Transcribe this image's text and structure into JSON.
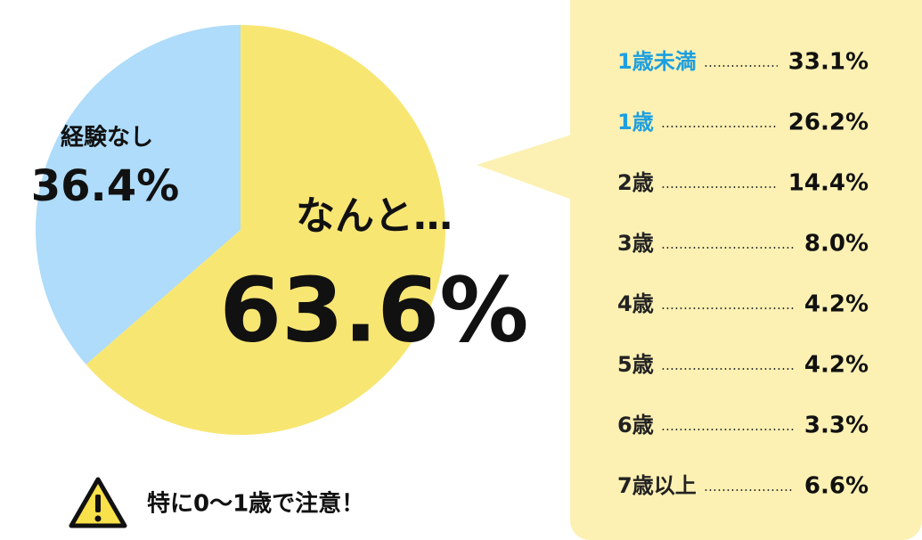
{
  "chart_data": [
    {
      "type": "pie",
      "categories": [
        null,
        "経験なし"
      ],
      "values": [
        63.6,
        36.4
      ],
      "value_labels": [
        "63.6%",
        "36.4%"
      ],
      "colors": [
        "#f8e673",
        "#aedcfa"
      ],
      "annotation": "なんと…",
      "note": "特に0〜1歳で注意！"
    },
    {
      "type": "list",
      "categories": [
        "1歳未満",
        "1歳",
        "2歳",
        "3歳",
        "4歳",
        "5歳",
        "6歳",
        "7歳以上"
      ],
      "values": [
        33.1,
        26.2,
        14.4,
        8.0,
        4.2,
        4.2,
        3.3,
        6.6
      ],
      "value_labels": [
        "33.1%",
        "26.2%",
        "14.4%",
        "8.0%",
        "4.2%",
        "4.2%",
        "3.3%",
        "6.6%"
      ],
      "label_colors": [
        "#1d9fe0",
        "#1d9fe0",
        "#222222",
        "#222222",
        "#222222",
        "#222222",
        "#222222",
        "#222222"
      ],
      "panel_color": "#fcf1b3"
    }
  ]
}
